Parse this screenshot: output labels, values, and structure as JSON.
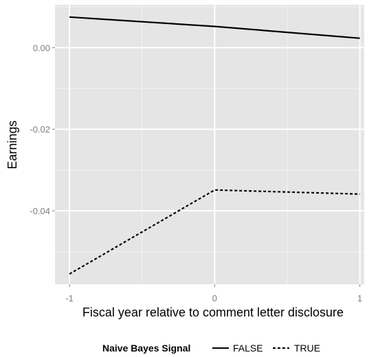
{
  "chart_data": {
    "type": "line",
    "xlabel": "Fiscal year relative to comment letter disclosure",
    "ylabel": "Earnings",
    "x": [
      -1,
      0,
      1
    ],
    "xticks": [
      -1,
      0,
      1
    ],
    "xtick_labels": [
      "-1",
      "0",
      "1"
    ],
    "xlim": [
      -1.1,
      1.03
    ],
    "yticks": [
      0.0,
      -0.02,
      -0.04
    ],
    "ytick_labels": [
      "0.00",
      "-0.02",
      "-0.04"
    ],
    "ylim": [
      -0.058,
      0.0105
    ],
    "grid": true,
    "legend": {
      "title": "Naive Bayes Signal",
      "position": "bottom"
    },
    "series": [
      {
        "name": "FALSE",
        "values": [
          0.0075,
          0.0052,
          0.0023
        ],
        "linestyle": "solid",
        "color": "#000000"
      },
      {
        "name": "TRUE",
        "values": [
          -0.0555,
          -0.0349,
          -0.0359
        ],
        "linestyle": "dashed",
        "color": "#000000"
      }
    ],
    "colors": {
      "panel": "#e5e5e5",
      "grid_major": "#ffffff",
      "grid_minor": "#f2f2f2",
      "tick_label": "#7f7f7f"
    }
  }
}
